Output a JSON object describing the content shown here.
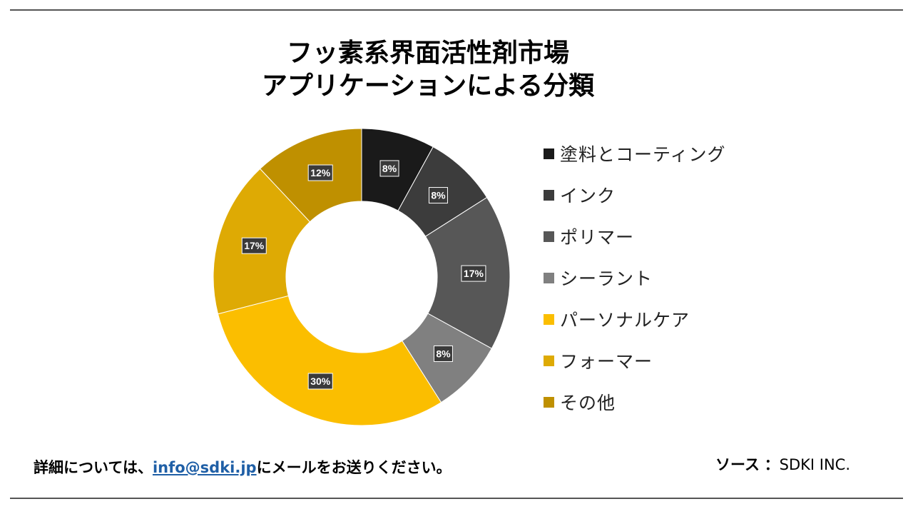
{
  "title_line1": "フッ素系界面活性剤市場",
  "title_line2": "アプリケーションによる分類",
  "footer": {
    "prefix": "詳細については、",
    "email": "info@sdki.jp",
    "suffix": "にメールをお送りください。"
  },
  "source": {
    "label": "ソース",
    "sep": "：",
    "value": "SDKI INC."
  },
  "chart_data": {
    "type": "pie",
    "categories": [
      "塗料とコーティング",
      "インク",
      "ポリマー",
      "シーラント",
      "パーソナルケア",
      "フォーマー",
      "その他"
    ],
    "values": [
      8,
      8,
      17,
      8,
      30,
      17,
      12
    ],
    "data_labels": [
      "8%",
      "8%",
      "17%",
      "8%",
      "30%",
      "17%",
      "12%"
    ],
    "colors": [
      "#1a1a1a",
      "#3c3c3c",
      "#575757",
      "#808080",
      "#fbbe00",
      "#deaa04",
      "#bf9000"
    ],
    "legend_position": "right"
  }
}
